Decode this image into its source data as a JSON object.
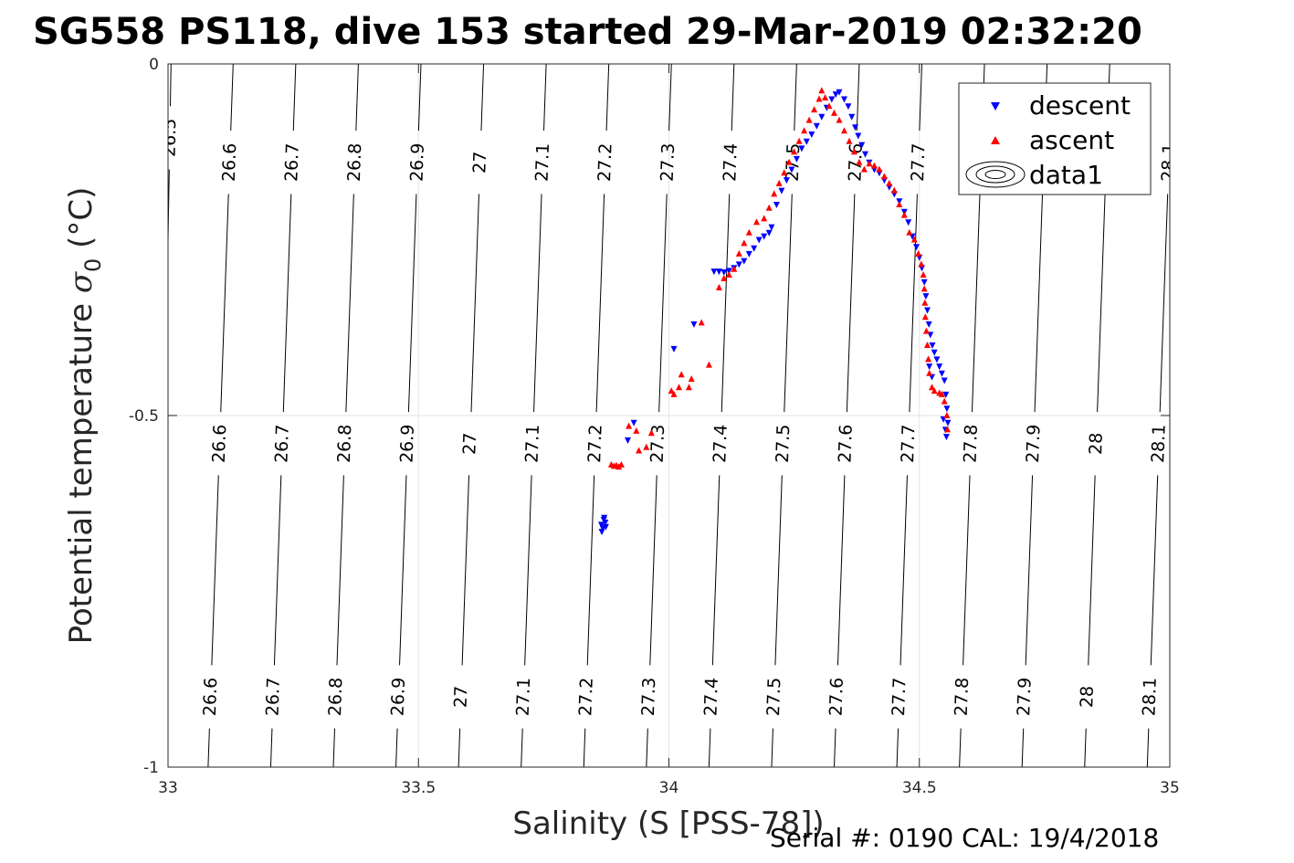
{
  "chart_data": {
    "type": "scatter",
    "title": "SG558 PS118, dive 153 started 29-Mar-2019 02:32:20",
    "xlabel": "Salinity (S [PSS-78])",
    "ylabel_main": "Potential temperature ",
    "ylabel_sigma": "σ",
    "ylabel_sub": "0",
    "ylabel_unit": " (°C)",
    "caption": "Serial #: 0190  CAL: 19/4/2018",
    "xlim": [
      33,
      35
    ],
    "ylim": [
      -1,
      0
    ],
    "xticks": [
      33,
      33.5,
      34,
      34.5,
      35
    ],
    "xtick_labels": [
      "33",
      "33.5",
      "34",
      "34.5",
      "35"
    ],
    "yticks": [
      0,
      -0.5,
      -1
    ],
    "ytick_labels": [
      "0",
      "-0.5",
      "-1"
    ],
    "grid": true,
    "legend_position": "top-right",
    "legend": [
      {
        "label": "descent",
        "marker": "triangle-down",
        "color": "#0000ff"
      },
      {
        "label": "ascent",
        "marker": "triangle-up",
        "color": "#ff0000"
      },
      {
        "label": "data1",
        "marker": "contour",
        "color": "#000000"
      }
    ],
    "contours": [
      {
        "level": "26.5",
        "x_top": 33.006,
        "slope": -0.024,
        "labels_y": [
          -0.105
        ]
      },
      {
        "level": "26.6",
        "x_top": 33.13,
        "slope": -0.05,
        "labels_y": [
          -0.14,
          -0.54,
          -0.9
        ]
      },
      {
        "level": "26.7",
        "x_top": 33.255,
        "slope": -0.05,
        "labels_y": [
          -0.14,
          -0.54,
          -0.9
        ]
      },
      {
        "level": "26.8",
        "x_top": 33.38,
        "slope": -0.05,
        "labels_y": [
          -0.14,
          -0.54,
          -0.9
        ]
      },
      {
        "level": "26.9",
        "x_top": 33.505,
        "slope": -0.05,
        "labels_y": [
          -0.14,
          -0.54,
          -0.9
        ]
      },
      {
        "level": "27",
        "x_top": 33.63,
        "slope": -0.05,
        "labels_y": [
          -0.14,
          -0.54,
          -0.9
        ]
      },
      {
        "level": "27.1",
        "x_top": 33.755,
        "slope": -0.05,
        "labels_y": [
          -0.14,
          -0.54,
          -0.9
        ]
      },
      {
        "level": "27.2",
        "x_top": 33.88,
        "slope": -0.05,
        "labels_y": [
          -0.14,
          -0.54,
          -0.9
        ]
      },
      {
        "level": "27.3",
        "x_top": 34.005,
        "slope": -0.05,
        "labels_y": [
          -0.14,
          -0.54,
          -0.9
        ]
      },
      {
        "level": "27.4",
        "x_top": 34.13,
        "slope": -0.05,
        "labels_y": [
          -0.14,
          -0.54,
          -0.9
        ]
      },
      {
        "level": "27.5",
        "x_top": 34.255,
        "slope": -0.05,
        "labels_y": [
          -0.14,
          -0.54,
          -0.9
        ]
      },
      {
        "level": "27.6",
        "x_top": 34.38,
        "slope": -0.05,
        "labels_y": [
          -0.14,
          -0.54,
          -0.9
        ]
      },
      {
        "level": "27.7",
        "x_top": 34.505,
        "slope": -0.05,
        "labels_y": [
          -0.14,
          -0.54,
          -0.9
        ]
      },
      {
        "level": "27.8",
        "x_top": 34.63,
        "slope": -0.05,
        "labels_y": [
          -0.54,
          -0.9
        ]
      },
      {
        "level": "27.9",
        "x_top": 34.755,
        "slope": -0.05,
        "labels_y": [
          -0.54,
          -0.9
        ]
      },
      {
        "level": "28",
        "x_top": 34.88,
        "slope": -0.05,
        "labels_y": [
          -0.54,
          -0.9
        ]
      },
      {
        "level": "28.1",
        "x_top": 35.005,
        "slope": -0.05,
        "labels_y": [
          -0.14,
          -0.54,
          -0.9
        ]
      }
    ],
    "series": [
      {
        "name": "descent",
        "color": "#0000ff",
        "marker": "triangle-down",
        "points": [
          [
            33.865,
            -0.655
          ],
          [
            33.87,
            -0.648
          ],
          [
            33.868,
            -0.66
          ],
          [
            33.873,
            -0.652
          ],
          [
            33.866,
            -0.665
          ],
          [
            33.871,
            -0.645
          ],
          [
            33.874,
            -0.658
          ],
          [
            33.918,
            -0.535
          ],
          [
            33.93,
            -0.51
          ],
          [
            34.01,
            -0.405
          ],
          [
            34.05,
            -0.37
          ],
          [
            34.09,
            -0.295
          ],
          [
            34.1,
            -0.295
          ],
          [
            34.11,
            -0.296
          ],
          [
            34.12,
            -0.294
          ],
          [
            34.13,
            -0.29
          ],
          [
            34.14,
            -0.285
          ],
          [
            34.15,
            -0.28
          ],
          [
            34.16,
            -0.27
          ],
          [
            34.17,
            -0.262
          ],
          [
            34.18,
            -0.25
          ],
          [
            34.19,
            -0.245
          ],
          [
            34.2,
            -0.24
          ],
          [
            34.205,
            -0.232
          ],
          [
            34.215,
            -0.2
          ],
          [
            34.225,
            -0.18
          ],
          [
            34.235,
            -0.165
          ],
          [
            34.245,
            -0.15
          ],
          [
            34.255,
            -0.135
          ],
          [
            34.265,
            -0.12
          ],
          [
            34.275,
            -0.11
          ],
          [
            34.285,
            -0.1
          ],
          [
            34.295,
            -0.088
          ],
          [
            34.305,
            -0.075
          ],
          [
            34.315,
            -0.062
          ],
          [
            34.325,
            -0.05
          ],
          [
            34.333,
            -0.043
          ],
          [
            34.34,
            -0.04
          ],
          [
            34.35,
            -0.05
          ],
          [
            34.358,
            -0.06
          ],
          [
            34.365,
            -0.075
          ],
          [
            34.372,
            -0.09
          ],
          [
            34.378,
            -0.102
          ],
          [
            34.385,
            -0.115
          ],
          [
            34.392,
            -0.128
          ],
          [
            34.4,
            -0.14
          ],
          [
            34.41,
            -0.15
          ],
          [
            34.42,
            -0.155
          ],
          [
            34.43,
            -0.165
          ],
          [
            34.44,
            -0.175
          ],
          [
            34.45,
            -0.185
          ],
          [
            34.46,
            -0.195
          ],
          [
            34.47,
            -0.21
          ],
          [
            34.478,
            -0.225
          ],
          [
            34.486,
            -0.245
          ],
          [
            34.494,
            -0.26
          ],
          [
            34.5,
            -0.275
          ],
          [
            34.505,
            -0.29
          ],
          [
            34.51,
            -0.31
          ],
          [
            34.513,
            -0.33
          ],
          [
            34.516,
            -0.35
          ],
          [
            34.519,
            -0.37
          ],
          [
            34.522,
            -0.385
          ],
          [
            34.526,
            -0.4
          ],
          [
            34.53,
            -0.41
          ],
          [
            34.535,
            -0.42
          ],
          [
            34.54,
            -0.43
          ],
          [
            34.545,
            -0.44
          ],
          [
            34.55,
            -0.45
          ],
          [
            34.553,
            -0.47
          ],
          [
            34.555,
            -0.49
          ],
          [
            34.557,
            -0.51
          ],
          [
            34.554,
            -0.53
          ],
          [
            34.52,
            -0.43
          ],
          [
            34.525,
            -0.445
          ],
          [
            34.548,
            -0.505
          ],
          [
            34.552,
            -0.52
          ]
        ]
      },
      {
        "name": "ascent",
        "color": "#ff0000",
        "marker": "triangle-up",
        "points": [
          [
            33.885,
            -0.57
          ],
          [
            33.89,
            -0.572
          ],
          [
            33.895,
            -0.571
          ],
          [
            33.9,
            -0.573
          ],
          [
            33.905,
            -0.57
          ],
          [
            33.92,
            -0.515
          ],
          [
            33.935,
            -0.522
          ],
          [
            33.94,
            -0.55
          ],
          [
            33.955,
            -0.545
          ],
          [
            33.965,
            -0.525
          ],
          [
            34.005,
            -0.465
          ],
          [
            34.01,
            -0.47
          ],
          [
            34.02,
            -0.46
          ],
          [
            34.025,
            -0.442
          ],
          [
            34.04,
            -0.46
          ],
          [
            34.045,
            -0.448
          ],
          [
            34.065,
            -0.368
          ],
          [
            34.08,
            -0.428
          ],
          [
            34.1,
            -0.318
          ],
          [
            34.11,
            -0.305
          ],
          [
            34.12,
            -0.3
          ],
          [
            34.13,
            -0.292
          ],
          [
            34.14,
            -0.27
          ],
          [
            34.15,
            -0.255
          ],
          [
            34.16,
            -0.24
          ],
          [
            34.175,
            -0.225
          ],
          [
            34.19,
            -0.22
          ],
          [
            34.2,
            -0.205
          ],
          [
            34.21,
            -0.185
          ],
          [
            34.22,
            -0.17
          ],
          [
            34.23,
            -0.155
          ],
          [
            34.24,
            -0.14
          ],
          [
            34.25,
            -0.125
          ],
          [
            34.26,
            -0.11
          ],
          [
            34.27,
            -0.095
          ],
          [
            34.28,
            -0.08
          ],
          [
            34.29,
            -0.065
          ],
          [
            34.3,
            -0.05
          ],
          [
            34.305,
            -0.038
          ],
          [
            34.312,
            -0.048
          ],
          [
            34.32,
            -0.06
          ],
          [
            34.33,
            -0.07
          ],
          [
            34.34,
            -0.08
          ],
          [
            34.35,
            -0.095
          ],
          [
            34.36,
            -0.11
          ],
          [
            34.37,
            -0.125
          ],
          [
            34.38,
            -0.14
          ],
          [
            34.39,
            -0.15
          ],
          [
            34.4,
            -0.142
          ],
          [
            34.41,
            -0.145
          ],
          [
            34.42,
            -0.15
          ],
          [
            34.43,
            -0.16
          ],
          [
            34.44,
            -0.17
          ],
          [
            34.45,
            -0.18
          ],
          [
            34.46,
            -0.2
          ],
          [
            34.47,
            -0.215
          ],
          [
            34.48,
            -0.24
          ],
          [
            34.49,
            -0.25
          ],
          [
            34.498,
            -0.27
          ],
          [
            34.504,
            -0.285
          ],
          [
            34.508,
            -0.3
          ],
          [
            34.51,
            -0.32
          ],
          [
            34.511,
            -0.34
          ],
          [
            34.512,
            -0.36
          ],
          [
            34.514,
            -0.38
          ],
          [
            34.516,
            -0.4
          ],
          [
            34.518,
            -0.42
          ],
          [
            34.52,
            -0.44
          ],
          [
            34.525,
            -0.46
          ],
          [
            34.53,
            -0.465
          ],
          [
            34.54,
            -0.468
          ],
          [
            34.545,
            -0.47
          ],
          [
            34.55,
            -0.48
          ],
          [
            34.555,
            -0.5
          ],
          [
            34.556,
            -0.52
          ]
        ]
      }
    ]
  }
}
